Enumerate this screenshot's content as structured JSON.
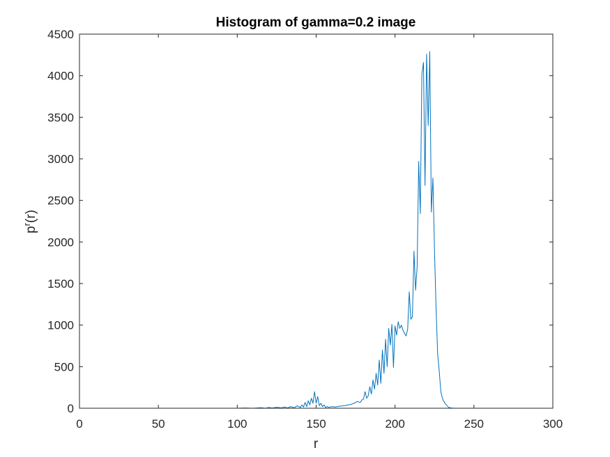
{
  "chart_data": {
    "type": "line",
    "title": "Histogram of gamma=0.2 image",
    "xlabel": "r",
    "ylabel_base": "p",
    "ylabel_sup": "r",
    "ylabel_tail": "(r)",
    "xlim": [
      0,
      300
    ],
    "ylim": [
      0,
      4500
    ],
    "xticks": [
      0,
      50,
      100,
      150,
      200,
      250,
      300
    ],
    "yticks": [
      0,
      500,
      1000,
      1500,
      2000,
      2500,
      3000,
      3500,
      4000,
      4500
    ],
    "grid": false,
    "line_color": "#0072BD",
    "series": [
      {
        "x": [
          0,
          100,
          105,
          110,
          115,
          118,
          120,
          122,
          125,
          128,
          130,
          132,
          134,
          136,
          138,
          140,
          141,
          142,
          143,
          144,
          145,
          146,
          147,
          148,
          149,
          150,
          151,
          152,
          153,
          154,
          155,
          156,
          157,
          158,
          160,
          162,
          165,
          168,
          170,
          172,
          174,
          176,
          178,
          179,
          180,
          181,
          182,
          183,
          184,
          185,
          186,
          187,
          188,
          189,
          190,
          191,
          192,
          193,
          194,
          195,
          196,
          197,
          198,
          199,
          200,
          201,
          202,
          203,
          204,
          205,
          206,
          207,
          208,
          209,
          210,
          211,
          212,
          213,
          214,
          215,
          216,
          217,
          218,
          219,
          220,
          221,
          222,
          223,
          224,
          225,
          226,
          227,
          228,
          229,
          230,
          231,
          232,
          233,
          234,
          235,
          236,
          238,
          240,
          245,
          250,
          255,
          256
        ],
        "y": [
          0,
          0,
          3,
          0,
          6,
          0,
          10,
          2,
          12,
          4,
          15,
          3,
          20,
          5,
          30,
          10,
          40,
          15,
          70,
          20,
          90,
          40,
          120,
          60,
          200,
          60,
          140,
          30,
          60,
          20,
          40,
          10,
          20,
          10,
          20,
          15,
          25,
          30,
          40,
          45,
          60,
          80,
          70,
          100,
          110,
          200,
          120,
          150,
          260,
          170,
          340,
          230,
          420,
          280,
          580,
          300,
          700,
          420,
          830,
          500,
          960,
          760,
          1010,
          490,
          990,
          880,
          1040,
          960,
          1000,
          940,
          900,
          870,
          950,
          1400,
          1070,
          1100,
          1890,
          1420,
          1700,
          2970,
          2340,
          4020,
          4160,
          2680,
          4260,
          3400,
          4290,
          2360,
          2770,
          1900,
          1200,
          650,
          450,
          200,
          120,
          80,
          50,
          30,
          10,
          5,
          2,
          0,
          0,
          0,
          0,
          0,
          0
        ]
      }
    ]
  }
}
